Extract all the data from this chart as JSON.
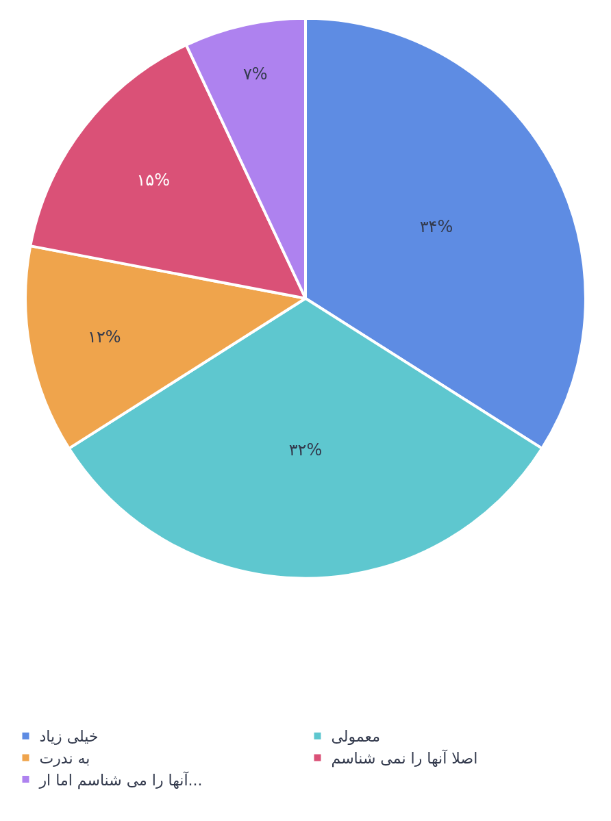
{
  "chart_data": {
    "type": "pie",
    "categories": [
      "خیلی زیاد",
      "معمولی",
      "به ندرت",
      "اصلا آنها را نمی شناسم",
      "آنها را می شناسم اما ار..."
    ],
    "values": [
      34,
      32,
      12,
      15,
      7
    ],
    "colors": [
      "#5e8ce3",
      "#5ec7cf",
      "#efa44c",
      "#da5177",
      "#ae82ef"
    ],
    "value_labels": [
      "۳۴%",
      "۳۲%",
      "۱۲%",
      "۱۵%",
      "۷%"
    ],
    "legend": "bottom"
  }
}
